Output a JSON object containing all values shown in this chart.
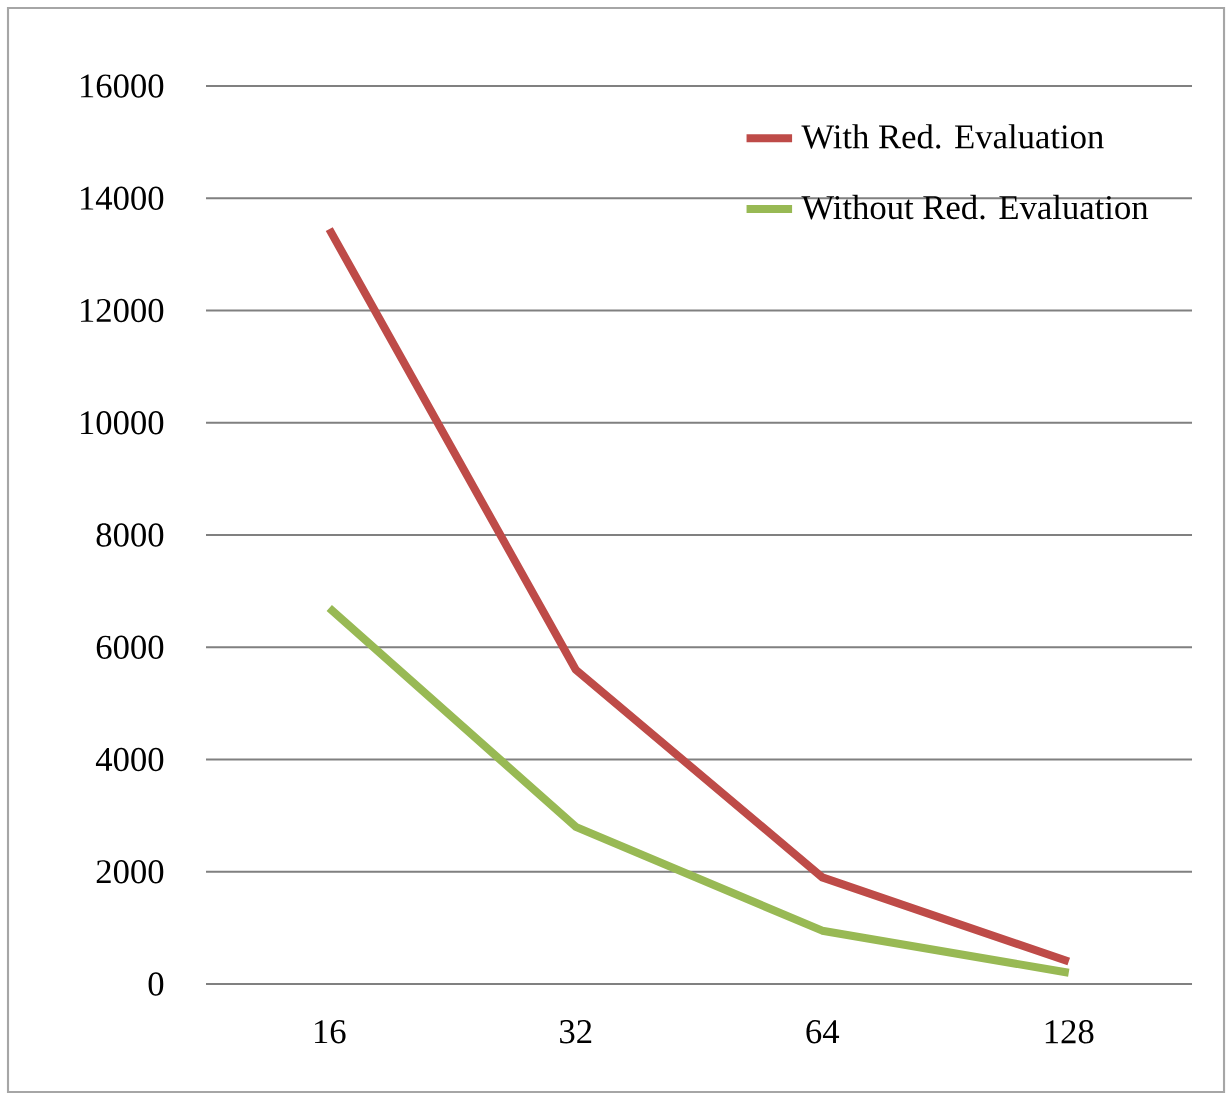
{
  "chart_data": {
    "type": "line",
    "categories": [
      "16",
      "32",
      "64",
      "128"
    ],
    "series": [
      {
        "name": "With Red. Evaluation",
        "color": "#be4b48",
        "values": [
          13450,
          5600,
          1900,
          400
        ]
      },
      {
        "name": "Without Red. Evaluation",
        "color": "#98b954",
        "values": [
          6700,
          2800,
          950,
          200
        ]
      }
    ],
    "ylim": [
      0,
      16000
    ],
    "yticks": [
      0,
      2000,
      4000,
      6000,
      8000,
      10000,
      12000,
      14000,
      16000
    ],
    "grid": "y",
    "legend": "top right",
    "marker": "none",
    "line_style": "solid"
  }
}
